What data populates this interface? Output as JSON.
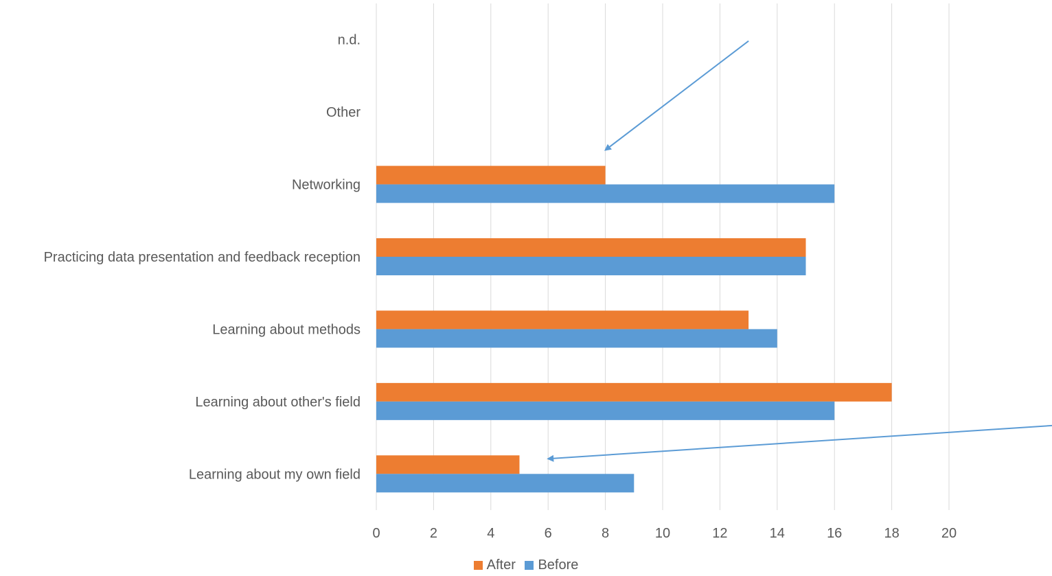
{
  "chart_data": {
    "type": "bar",
    "orientation": "horizontal",
    "categories": [
      "n.d.",
      "Other",
      "Networking",
      "Practicing data presentation and feedback reception",
      "Learning about methods",
      "Learning about other's field",
      "Learning about my own field"
    ],
    "series": [
      {
        "name": "After",
        "color": "#ED7D31",
        "values": [
          null,
          null,
          8,
          15,
          13,
          18,
          5
        ]
      },
      {
        "name": "Before",
        "color": "#5B9BD5",
        "values": [
          null,
          null,
          16,
          15,
          14,
          16,
          9
        ]
      }
    ],
    "xlim": [
      0,
      24
    ],
    "xticks": [
      0,
      2,
      4,
      6,
      8,
      10,
      12,
      14,
      16,
      18,
      20
    ],
    "grid": "vertical",
    "legend_position": "bottom",
    "annotations": [
      {
        "type": "arrow",
        "color": "#5B9BD5",
        "from": {
          "x": 13,
          "category": "n.d."
        },
        "to": {
          "x": 8,
          "category": "Networking"
        }
      },
      {
        "type": "arrow",
        "color": "#5B9BD5",
        "from": {
          "x": 23.6,
          "category": "Learning about other's field"
        },
        "to": {
          "x": 6,
          "category": "Learning about my own field"
        }
      }
    ]
  }
}
